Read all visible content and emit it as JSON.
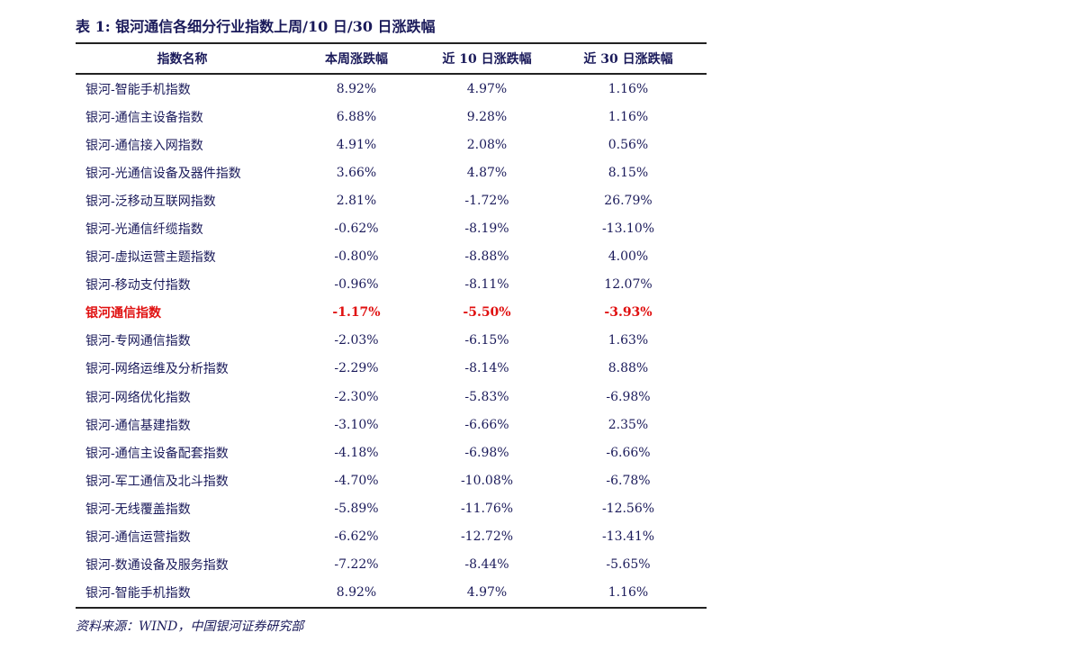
{
  "title": "表 1:  银河通信各细分行业指数上周/10 日/30 日涨跌幅",
  "table": {
    "header": [
      "指数名称",
      "本周涨跌幅",
      "近 10 日涨跌幅",
      "近 30 日涨跌幅"
    ],
    "rows": [
      [
        "银河-智能手机指数",
        "8.92%",
        "4.97%",
        "1.16%"
      ],
      [
        "银河-通信主设备指数",
        "6.88%",
        "9.28%",
        "1.16%"
      ],
      [
        "银河-通信接入网指数",
        "4.91%",
        "2.08%",
        "0.56%"
      ],
      [
        "银河-光通信设备及器件指数",
        "3.66%",
        "4.87%",
        "8.15%"
      ],
      [
        "银河-泛移动互联网指数",
        "2.81%",
        "-1.72%",
        "26.79%"
      ],
      [
        "银河-光通信纤缆指数",
        "-0.62%",
        "-8.19%",
        "-13.10%"
      ],
      [
        "银河-虚拟运营主题指数",
        "-0.80%",
        "-8.88%",
        "4.00%"
      ],
      [
        "银河-移动支付指数",
        "-0.96%",
        "-8.11%",
        "12.07%"
      ],
      [
        "银河通信指数",
        "-1.17%",
        "-5.50%",
        "-3.93%"
      ],
      [
        "银河-专网通信指数",
        "-2.03%",
        "-6.15%",
        "1.63%"
      ],
      [
        "银河-网络运维及分析指数",
        "-2.29%",
        "-8.14%",
        "8.88%"
      ],
      [
        "银河-网络优化指数",
        "-2.30%",
        "-5.83%",
        "-6.98%"
      ],
      [
        "银河-通信基建指数",
        "-3.10%",
        "-6.66%",
        "2.35%"
      ],
      [
        "银河-通信主设备配套指数",
        "-4.18%",
        "-6.98%",
        "-6.66%"
      ],
      [
        "银河-军工通信及北斗指数",
        "-4.70%",
        "-10.08%",
        "-6.78%"
      ],
      [
        "银河-无线覆盖指数",
        "-5.89%",
        "-11.76%",
        "-12.56%"
      ],
      [
        "银河-通信运营指数",
        "-6.62%",
        "-12.72%",
        "-13.41%"
      ],
      [
        "银河-数通设备及服务指数",
        "-7.22%",
        "-8.44%",
        "-5.65%"
      ],
      [
        "银河-智能手机指数",
        "8.92%",
        "4.97%",
        "1.16%"
      ]
    ]
  },
  "source": "资料来源：WIND，中国银河证券研究部"
}
